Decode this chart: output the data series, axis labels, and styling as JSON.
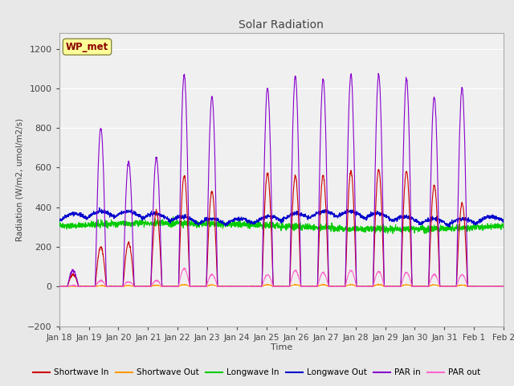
{
  "title": "Solar Radiation",
  "ylabel": "Radiation (W/m2, umol/m2/s)",
  "xlabel": "Time",
  "ylim": [
    -200,
    1280
  ],
  "yticks": [
    -200,
    0,
    200,
    400,
    600,
    800,
    1000,
    1200
  ],
  "background_color": "#e8e8e8",
  "plot_bg_color": "#f0f0f0",
  "grid_color": "white",
  "series": {
    "shortwave_in": {
      "color": "#cc0000",
      "label": "Shortwave In"
    },
    "shortwave_out": {
      "color": "#ff9900",
      "label": "Shortwave Out"
    },
    "longwave_in": {
      "color": "#00cc00",
      "label": "Longwave In"
    },
    "longwave_out": {
      "color": "#0000cc",
      "label": "Longwave Out"
    },
    "par_in": {
      "color": "#8800cc",
      "label": "PAR in"
    },
    "par_out": {
      "color": "#ff66cc",
      "label": "PAR out"
    }
  },
  "xtick_labels": [
    "Jan 18",
    "Jan 19",
    "Jan 20",
    "Jan 21",
    "Jan 22",
    "Jan 23",
    "Jan 24",
    "Jan 25",
    "Jan 26",
    "Jan 27",
    "Jan 28",
    "Jan 29",
    "Jan 30",
    "Jan 31",
    "Feb 1",
    "Feb 2"
  ],
  "station_label": "WP_met",
  "station_label_color": "#8b0000",
  "station_box_color": "#ffff99",
  "day_peaks_par": [
    80,
    800,
    630,
    650,
    1070,
    960,
    0,
    1000,
    1060,
    1050,
    1070,
    1070,
    1050,
    960,
    1000,
    0
  ],
  "day_peaks_sw": [
    60,
    200,
    220,
    380,
    560,
    480,
    0,
    570,
    560,
    560,
    580,
    590,
    580,
    510,
    420,
    0
  ],
  "day_peaks_par_out": [
    5,
    30,
    25,
    30,
    90,
    60,
    0,
    60,
    80,
    70,
    80,
    75,
    70,
    60,
    60,
    0
  ]
}
